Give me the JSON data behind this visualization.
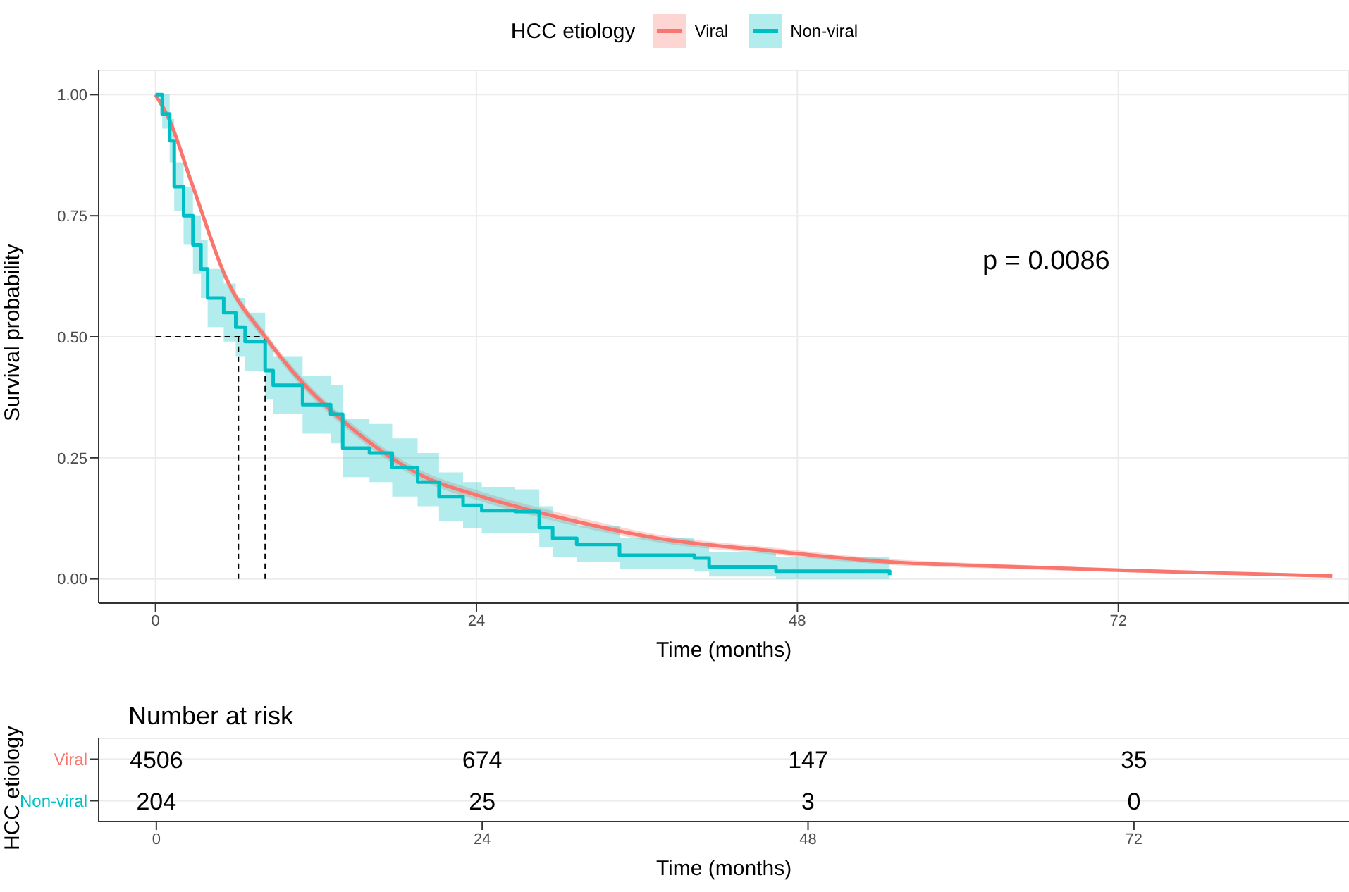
{
  "chart_data": [
    {
      "type": "step",
      "xlabel": "Time (months)",
      "ylabel": "Survival probability",
      "legend_title": "HCC etiology",
      "legend": "top",
      "grid": true,
      "xlim": [
        -4.25,
        89.25
      ],
      "xticks": [
        0,
        24,
        48,
        72
      ],
      "ylim": [
        -0.05,
        1.05
      ],
      "yticks": [
        {
          "value": 0,
          "label": "0.00"
        },
        {
          "value": 0.25,
          "label": "0.25"
        },
        {
          "value": 0.5,
          "label": "0.50"
        },
        {
          "value": 0.75,
          "label": "0.75"
        },
        {
          "value": 1,
          "label": "1.00"
        }
      ],
      "series": [
        {
          "name": "Viral",
          "type": "line",
          "color": "#f8766d",
          "x": [
            0,
            1,
            2.8,
            5.3,
            8.2,
            11,
            14.5,
            19.8,
            24.4,
            30.5,
            37.5,
            46.4,
            54.9,
            62,
            72,
            80,
            88
          ],
          "values": [
            1,
            0.95,
            0.81,
            0.62,
            0.5,
            0.405,
            0.315,
            0.215,
            0.17,
            0.125,
            0.084,
            0.057,
            0.035,
            0.027,
            0.018,
            0.012,
            0.006
          ],
          "lower": [
            1,
            0.94,
            0.8,
            0.61,
            0.49,
            0.395,
            0.305,
            0.205,
            0.16,
            0.115,
            0.076,
            0.05,
            0.029,
            0.022,
            0.014,
            0.009,
            0.004
          ],
          "upper": [
            1,
            0.96,
            0.82,
            0.63,
            0.51,
            0.415,
            0.325,
            0.225,
            0.18,
            0.135,
            0.092,
            0.064,
            0.041,
            0.032,
            0.022,
            0.015,
            0.008
          ]
        },
        {
          "name": "Non-viral",
          "color": "#00bfc4",
          "x": [
            0,
            0.5,
            1.06,
            1.4,
            2.1,
            2.8,
            3.4,
            3.9,
            5.1,
            6,
            6.7,
            8.2,
            8.8,
            11,
            13.1,
            14,
            16,
            17.7,
            19.6,
            21.2,
            23,
            24.4,
            26.9,
            28.7,
            29.7,
            31.5,
            34.7,
            40.3,
            41.4,
            46.4,
            53.8,
            54.9
          ],
          "values": [
            1,
            0.96,
            0.905,
            0.81,
            0.75,
            0.69,
            0.64,
            0.58,
            0.55,
            0.52,
            0.49,
            0.43,
            0.4,
            0.36,
            0.34,
            0.27,
            0.26,
            0.23,
            0.2,
            0.17,
            0.152,
            0.141,
            0.139,
            0.106,
            0.084,
            0.071,
            0.049,
            0.043,
            0.025,
            0.016,
            0.016,
            0.008
          ],
          "lower": [
            1,
            0.93,
            0.86,
            0.76,
            0.69,
            0.63,
            0.58,
            0.52,
            0.49,
            0.46,
            0.43,
            0.37,
            0.34,
            0.3,
            0.28,
            0.21,
            0.2,
            0.17,
            0.15,
            0.12,
            0.105,
            0.095,
            0.095,
            0.065,
            0.045,
            0.035,
            0.02,
            0.015,
            0.005,
            0,
            0,
            0
          ],
          "upper": [
            1,
            1,
            0.95,
            0.86,
            0.81,
            0.75,
            0.7,
            0.64,
            0.61,
            0.58,
            0.55,
            0.49,
            0.46,
            0.42,
            0.4,
            0.33,
            0.32,
            0.29,
            0.26,
            0.22,
            0.2,
            0.19,
            0.185,
            0.15,
            0.125,
            0.11,
            0.085,
            0.075,
            0.055,
            0.045,
            0.045,
            0.035
          ]
        }
      ],
      "ref_lines": [
        {
          "axis": "y",
          "value": 0.5,
          "line_style": "dashed",
          "color": "#000000"
        },
        {
          "axis": "x",
          "value": 6.2,
          "line_style": "dashed",
          "color": "#000000"
        },
        {
          "axis": "x",
          "value": 8.2,
          "line_style": "dashed",
          "color": "#000000"
        }
      ],
      "annotations": [
        "p = 0.0086"
      ]
    },
    {
      "type": "heatmap",
      "title": "Number at risk",
      "xlabel": "Time (months)",
      "ylabel": "HCC etiology",
      "categories": [
        "0",
        "24",
        "48",
        "72"
      ],
      "y_categories": [
        "Viral",
        "Non-viral"
      ],
      "colors": [
        "#f8766d",
        "#00bfc4"
      ],
      "data_labels": true,
      "cells": [
        [
          4506,
          674,
          147,
          35
        ],
        [
          204,
          25,
          3,
          0
        ]
      ]
    }
  ]
}
